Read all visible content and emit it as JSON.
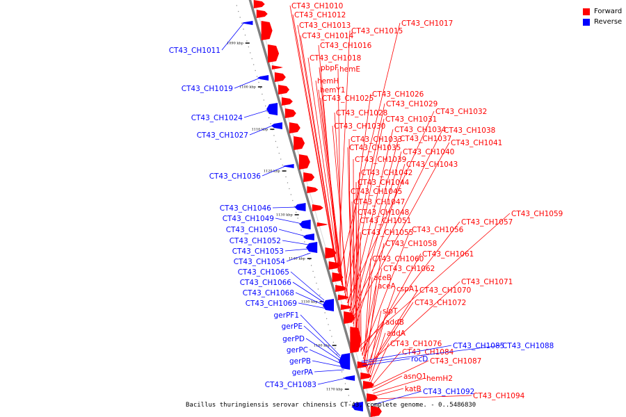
{
  "colors": {
    "forward": "#ff0000",
    "reverse": "#0000ff",
    "backbone": "#7f7f7f"
  },
  "legend": [
    {
      "label": "Forward",
      "color": "#ff0000"
    },
    {
      "label": "Reverse",
      "color": "#0000ff"
    }
  ],
  "caption": "Bacillus thuringiensis serovar chinensis CT-43, complete genome. - 0..5486830",
  "ticks": [
    "1090 kbp",
    "1100 kbp",
    "1110 kbp",
    "1120 kbp",
    "1130 kbp",
    "1140 kbp",
    "1150 kbp",
    "1160 kbp",
    "1170 kbp"
  ],
  "forward_genes": [
    "CT43_CH1010",
    "CT43_CH1012",
    "CT43_CH1013",
    "CT43_CH1014",
    "CT43_CH1015",
    "CT43_CH1017",
    "CT43_CH1016",
    "CT43_CH1018",
    "pbpF",
    "hemE",
    "hemH",
    "hemY1",
    "CT43_CH1025",
    "CT43_CH1026",
    "CT43_CH1029",
    "CT43_CH1028",
    "CT43_CH1032",
    "CT43_CH1031",
    "CT43_CH1030",
    "CT43_CH1034",
    "CT43_CH1038",
    "CT43_CH1033",
    "CT43_CH1037",
    "CT43_CH1041",
    "CT43_CH1035",
    "CT43_CH1040",
    "CT43_CH1039",
    "CT43_CH1043",
    "CT43_CH1042",
    "CT43_CH1044",
    "CT43_CH1045",
    "CT43_CH1047",
    "CT43_CH1048",
    "CT43_CH1059",
    "CT43_CH1051",
    "CT43_CH1057",
    "CT43_CH1055",
    "CT43_CH1056",
    "CT43_CH1058",
    "CT43_CH1061",
    "CT43_CH1060",
    "CT43_CH1062",
    "aceB",
    "CT43_CH1071",
    "aceA",
    "cspA1",
    "CT43_CH1070",
    "CT43_CH1072",
    "sipT",
    "addB",
    "addA",
    "CT43_CH1076",
    "CT43_CH1084",
    "CT43_CH1087",
    "asnO1",
    "hemH2",
    "katB",
    "CT43_CH1094"
  ],
  "reverse_genes": [
    "CT43_CH1011",
    "CT43_CH1019",
    "CT43_CH1024",
    "CT43_CH1027",
    "CT43_CH1036",
    "CT43_CH1046",
    "CT43_CH1049",
    "CT43_CH1050",
    "CT43_CH1052",
    "CT43_CH1053",
    "CT43_CH1054",
    "CT43_CH1065",
    "CT43_CH1066",
    "CT43_CH1068",
    "CT43_CH1069",
    "gerPF1",
    "gerPE",
    "gerPD",
    "gerPC",
    "gerPB",
    "gerPA",
    "CT43_CH1083",
    "CT43_CH1085",
    "CT43_CH1088",
    "rocD",
    "CT43_CH1092"
  ]
}
